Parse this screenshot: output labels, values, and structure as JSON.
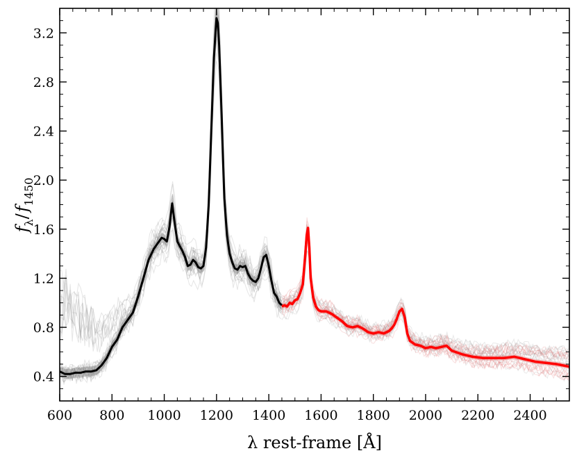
{
  "chart_data": {
    "type": "line",
    "title": "",
    "xlabel": "λ rest-frame [Å]",
    "ylabel": "f_λ / f_1450",
    "ylabel_parts": {
      "f1": "f",
      "sub1": "λ",
      "slash": "/",
      "f2": "f",
      "sub2": "1450"
    },
    "xlim": [
      600,
      2550
    ],
    "ylim": [
      0.2,
      3.4
    ],
    "xticks": [
      600,
      800,
      1000,
      1200,
      1400,
      1600,
      1800,
      2000,
      2200,
      2400
    ],
    "yticks": [
      0.4,
      0.8,
      1.2,
      1.6,
      2.0,
      2.4,
      2.8,
      3.2
    ],
    "ytick_labels": [
      "0.4",
      "0.8",
      "1.2",
      "1.6",
      "2.0",
      "2.4",
      "2.8",
      "3.2"
    ],
    "grid": false,
    "colors": {
      "blue_composite": "#000000",
      "red_composite": "#ff0000",
      "blue_band": "#808080",
      "red_band": "#e07070"
    },
    "series": [
      {
        "role": "composite-blue",
        "x": [
          600,
          620,
          640,
          660,
          680,
          700,
          720,
          740,
          760,
          780,
          800,
          820,
          840,
          860,
          880,
          900,
          920,
          940,
          960,
          970,
          980,
          990,
          1000,
          1010,
          1020,
          1030,
          1040,
          1050,
          1060,
          1070,
          1080,
          1090,
          1100,
          1110,
          1120,
          1130,
          1140,
          1150,
          1160,
          1170,
          1180,
          1190,
          1200,
          1205,
          1210,
          1215,
          1220,
          1225,
          1230,
          1240,
          1250,
          1260,
          1270,
          1280,
          1290,
          1300,
          1310,
          1320,
          1330,
          1340,
          1350,
          1360,
          1370,
          1380,
          1390,
          1400,
          1410,
          1420,
          1430,
          1440,
          1450
        ],
        "y": [
          0.44,
          0.42,
          0.42,
          0.43,
          0.43,
          0.44,
          0.44,
          0.45,
          0.49,
          0.55,
          0.64,
          0.7,
          0.8,
          0.86,
          0.92,
          1.05,
          1.2,
          1.35,
          1.44,
          1.47,
          1.5,
          1.53,
          1.52,
          1.5,
          1.62,
          1.81,
          1.65,
          1.5,
          1.46,
          1.42,
          1.37,
          1.3,
          1.31,
          1.35,
          1.33,
          1.29,
          1.28,
          1.3,
          1.45,
          1.8,
          2.4,
          3.0,
          3.32,
          3.28,
          3.1,
          2.8,
          2.5,
          2.15,
          1.85,
          1.55,
          1.4,
          1.33,
          1.28,
          1.27,
          1.3,
          1.29,
          1.3,
          1.24,
          1.2,
          1.18,
          1.17,
          1.2,
          1.28,
          1.37,
          1.39,
          1.3,
          1.18,
          1.08,
          1.05,
          1.0,
          0.98
        ]
      },
      {
        "role": "composite-red",
        "x": [
          1450,
          1460,
          1470,
          1480,
          1490,
          1500,
          1510,
          1520,
          1530,
          1540,
          1545,
          1550,
          1555,
          1560,
          1570,
          1580,
          1590,
          1600,
          1620,
          1640,
          1660,
          1680,
          1700,
          1720,
          1740,
          1760,
          1780,
          1800,
          1820,
          1840,
          1860,
          1870,
          1880,
          1890,
          1900,
          1910,
          1920,
          1930,
          1940,
          1960,
          1980,
          2000,
          2020,
          2040,
          2060,
          2080,
          2100,
          2140,
          2180,
          2220,
          2260,
          2300,
          2340,
          2380,
          2420,
          2460,
          2500,
          2550
        ],
        "y": [
          0.97,
          0.98,
          0.97,
          1.0,
          0.99,
          1.02,
          1.03,
          1.08,
          1.15,
          1.4,
          1.55,
          1.61,
          1.45,
          1.2,
          1.04,
          0.97,
          0.94,
          0.93,
          0.93,
          0.91,
          0.88,
          0.85,
          0.81,
          0.8,
          0.81,
          0.79,
          0.76,
          0.75,
          0.76,
          0.75,
          0.77,
          0.79,
          0.82,
          0.87,
          0.93,
          0.95,
          0.88,
          0.75,
          0.69,
          0.66,
          0.65,
          0.63,
          0.64,
          0.63,
          0.64,
          0.65,
          0.61,
          0.58,
          0.56,
          0.55,
          0.55,
          0.55,
          0.56,
          0.54,
          0.52,
          0.51,
          0.5,
          0.48
        ]
      }
    ]
  }
}
